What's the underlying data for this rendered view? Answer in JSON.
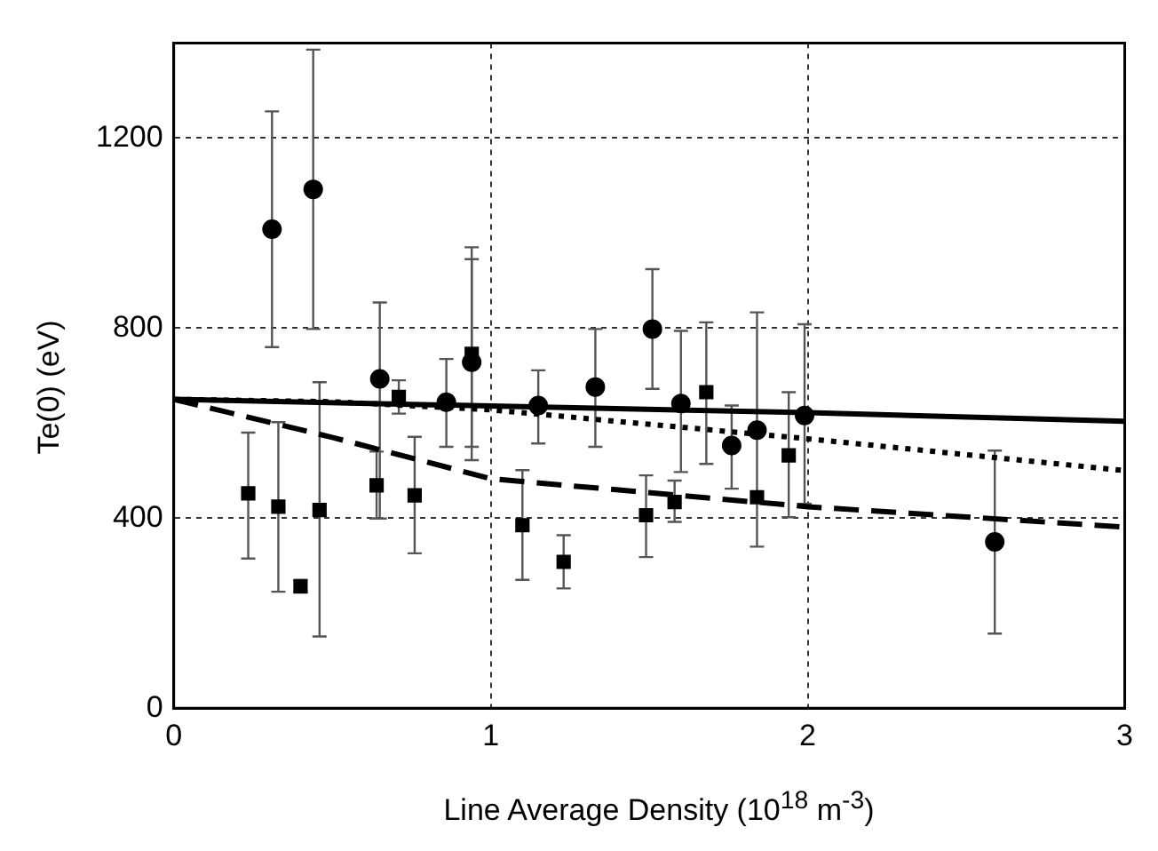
{
  "chart_data": {
    "type": "scatter",
    "xlabel": "Line Average Density (10$^{18}$ m$^{-3}$)",
    "ylabel": "Te(0) (eV)",
    "xlim": [
      0,
      3
    ],
    "ylim": [
      0,
      1400
    ],
    "xticks": [
      0,
      1,
      2,
      3
    ],
    "yticks": [
      0,
      400,
      800,
      1200
    ],
    "grid": true,
    "legend": false,
    "series": [
      {
        "marker": "circle",
        "color": "#000000",
        "x": [
          0.31,
          0.44,
          0.65,
          0.86,
          0.94,
          1.15,
          1.33,
          1.51,
          1.6,
          1.76,
          1.84,
          1.99,
          2.59
        ],
        "values": [
          1008,
          1092,
          693,
          644,
          728,
          637,
          676,
          798,
          641,
          553,
          585,
          616,
          350
        ],
        "errors": [
          [
            760,
            1256
          ],
          [
            798,
            1386
          ],
          [
            399,
            854
          ],
          [
            550,
            735
          ],
          [
            522,
            945
          ],
          [
            557,
            711
          ],
          [
            550,
            798
          ],
          [
            672,
            924
          ],
          [
            497,
            794
          ],
          [
            462,
            637
          ],
          [
            340,
            833
          ],
          [
            430,
            808
          ],
          [
            157,
            542
          ]
        ]
      },
      {
        "marker": "square",
        "color": "#000000",
        "x": [
          0.235,
          0.33,
          0.4,
          0.46,
          0.64,
          0.71,
          0.76,
          0.94,
          1.1,
          1.23,
          1.49,
          1.58,
          1.68,
          1.84,
          1.94
        ],
        "values": [
          452,
          424,
          256,
          417,
          469,
          655,
          448,
          746,
          385,
          308,
          406,
          434,
          665,
          444,
          532
        ],
        "errors": [
          [
            315,
            580
          ],
          [
            245,
            602
          ],
          [
            245,
            270
          ],
          [
            151,
            686
          ],
          [
            399,
            540
          ],
          [
            620,
            690
          ],
          [
            326,
            571
          ],
          [
            550,
            970
          ],
          [
            270,
            501
          ],
          [
            252,
            364
          ],
          [
            318,
            490
          ],
          [
            392,
            479
          ],
          [
            514,
            812
          ],
          null,
          [
            402,
            665
          ]
        ]
      },
      {
        "type": "line",
        "marker": "none",
        "line_style": "solid",
        "color": "#000000",
        "x": [
          0,
          1,
          2,
          3
        ],
        "values": [
          650,
          636,
          622,
          604
        ]
      },
      {
        "type": "line",
        "marker": "none",
        "line_style": "dotted",
        "color": "#000000",
        "x": [
          0,
          0.5,
          1,
          2,
          3
        ],
        "values": [
          650,
          645,
          628,
          567,
          500
        ]
      },
      {
        "type": "line",
        "marker": "none",
        "line_style": "dashed",
        "color": "#000000",
        "x": [
          0,
          0.5,
          1,
          2,
          3
        ],
        "values": [
          650,
          570,
          483,
          424,
          381
        ]
      }
    ]
  }
}
